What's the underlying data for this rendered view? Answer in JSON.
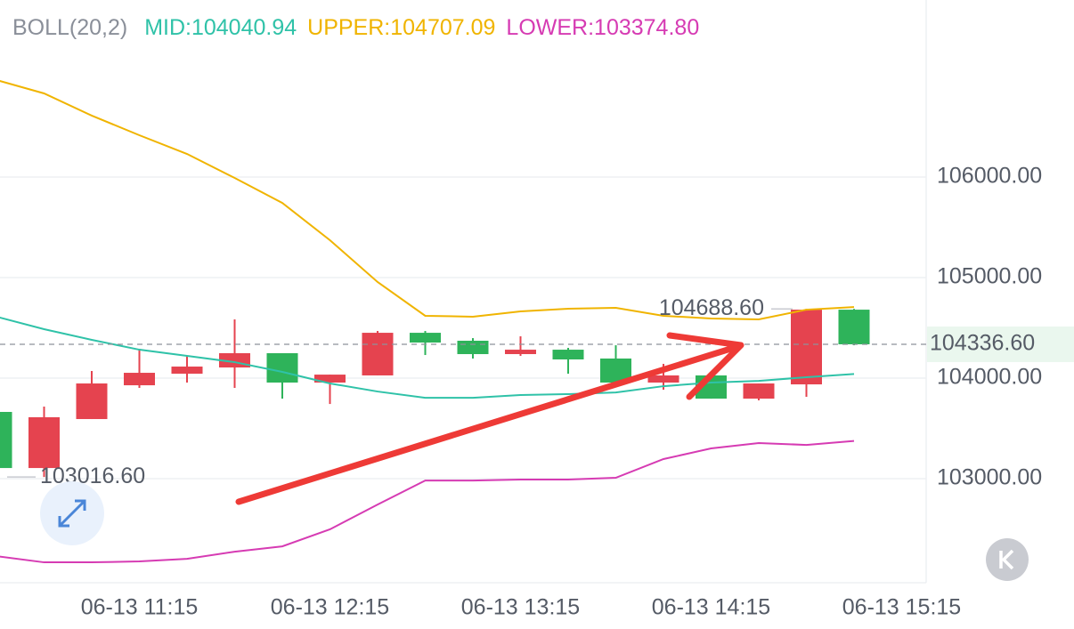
{
  "chart_data": {
    "type": "candlestick",
    "indicator": "BOLL(20,2)",
    "categories": [
      null,
      null,
      null,
      "06-13 11:15",
      null,
      null,
      null,
      "06-13 12:15",
      null,
      null,
      null,
      "06-13 13:15",
      null,
      null,
      null,
      "06-13 14:15",
      null,
      null,
      null,
      "06-13 15:15"
    ],
    "candles": {
      "up_color": "#e5434f",
      "down_color": "#2eb35a",
      "open": [
        103664,
        103106,
        103593,
        103929,
        104044,
        104106,
        104248,
        103956,
        104027,
        104451,
        104372,
        104239,
        104283,
        104195,
        103956,
        104027,
        103796,
        103938,
        104681,
        null
      ],
      "high": [
        103664,
        103717,
        104071,
        104292,
        104221,
        104584,
        104248,
        104035,
        104469,
        104469,
        104398,
        104416,
        104301,
        104327,
        104142,
        104027,
        103947,
        104688.6,
        104688.6,
        null
      ],
      "low": [
        103106,
        103016.6,
        103593,
        103903,
        103956,
        103903,
        103796,
        103743,
        104027,
        104230,
        104195,
        104221,
        104044,
        103956,
        103885,
        103796,
        103779,
        103814,
        104327,
        null
      ],
      "close": [
        103106,
        103611,
        103947,
        104053,
        104115,
        104248,
        103956,
        104035,
        104451,
        104354,
        104239,
        104283,
        104186,
        103956,
        104027,
        103796,
        103947,
        104681,
        104336.6,
        null
      ]
    },
    "lines": [
      {
        "name": "MID",
        "legend_label": "MID:104040.94",
        "color": "#2fc2a8",
        "values": [
          104611,
          104487,
          104381,
          104283,
          104221,
          104159,
          104062,
          103947,
          103867,
          103805,
          103805,
          103832,
          103841,
          103858,
          103920,
          103956,
          103973,
          104009,
          104040.94,
          null
        ]
      },
      {
        "name": "UPPER",
        "legend_label": "UPPER:104707.09",
        "color": "#f0b400",
        "values": [
          106965,
          106832,
          106611,
          106416,
          106230,
          105991,
          105743,
          105372,
          104956,
          104620,
          104611,
          104664,
          104690,
          104699,
          104620,
          104593,
          104584,
          104681,
          104707.09,
          null
        ]
      },
      {
        "name": "LOWER",
        "legend_label": "LOWER:103374.80",
        "color": "#d63bb3",
        "values": [
          102230,
          102168,
          102168,
          102177,
          102203,
          102274,
          102327,
          102496,
          102743,
          102982,
          102982,
          102991,
          102991,
          103009,
          103195,
          103301,
          103354,
          103336,
          103374.8,
          null
        ]
      }
    ],
    "ylim": [
      101965,
      107761
    ],
    "yticks": [
      {
        "value": 103000,
        "label": "103000.00"
      },
      {
        "value": 104000,
        "label": "104000.00"
      },
      {
        "value": 105000,
        "label": "105000.00"
      },
      {
        "value": 106000,
        "label": "106000.00"
      }
    ],
    "grid": true,
    "annotations": [
      {
        "text": "104688.60",
        "value": 104688.6,
        "kind": "high"
      },
      {
        "text": "103016.60",
        "value": 103016.6,
        "kind": "low"
      },
      {
        "text": "104336.60",
        "value": 104336.6,
        "kind": "last"
      }
    ]
  }
}
